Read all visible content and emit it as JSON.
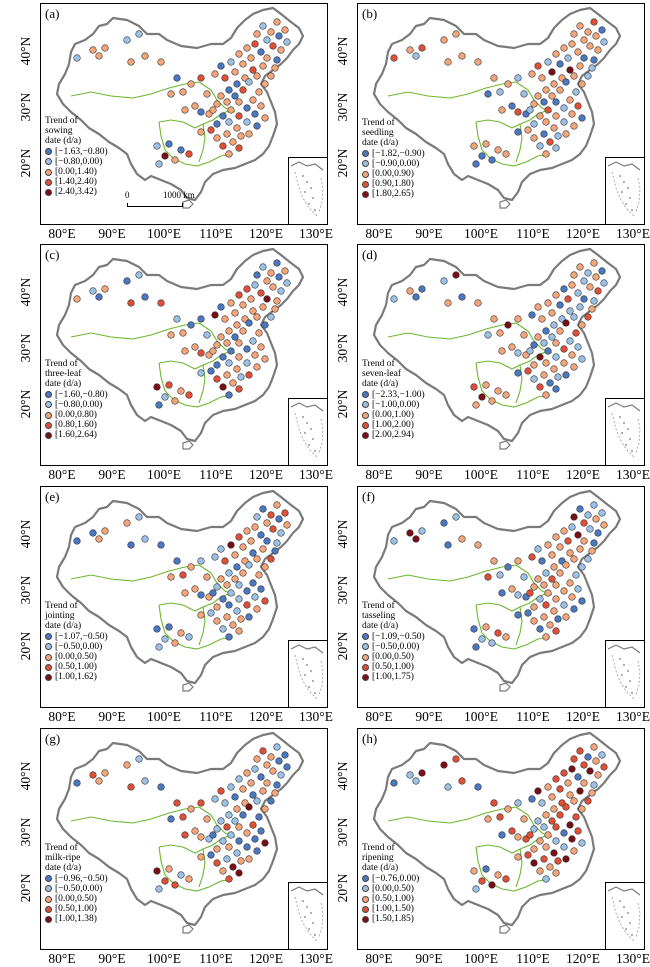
{
  "x_ticks": [
    "80°E",
    "90°E",
    "100°E",
    "110°E",
    "120°E",
    "130°E"
  ],
  "y_ticks": [
    "40°N",
    "30°N",
    "20°N"
  ],
  "scale_bar": {
    "start": "0",
    "end": "1000 km"
  },
  "colors": {
    "c1": "#4a78c2",
    "c2": "#9cc1e6",
    "c3": "#f4a57a",
    "c4": "#e05038",
    "c5": "#7a0e14",
    "boundary": "#7a7a7a",
    "zone": "#6cb82e"
  },
  "panels": [
    {
      "id": "a",
      "label": "(a)",
      "legend_title": [
        "Trend of",
        "sowing",
        "date (d/a)"
      ],
      "classes": [
        "[−1.63,−0.80)",
        "[−0.80,0.00)",
        "[0.00,1.40)",
        "[1.40,2.40)",
        "[2.40,3.42)"
      ]
    },
    {
      "id": "b",
      "label": "(b)",
      "legend_title": [
        "Trend of",
        "seedling",
        "date (d/a)"
      ],
      "classes": [
        "[−1.82,−0.90)",
        "[−0.90,0.00)",
        "[0.00,0.90)",
        "[0.90,1.80)",
        "[1.80,2.65)"
      ]
    },
    {
      "id": "c",
      "label": "(c)",
      "legend_title": [
        "Trend of",
        "three-leaf",
        "date (d/a)"
      ],
      "classes": [
        "[−1.60,−0.80)",
        "[−0.80,0.00)",
        "[0.00,0.80)",
        "[0.80,1.60)",
        "[1.60,2.64)"
      ]
    },
    {
      "id": "d",
      "label": "(d)",
      "legend_title": [
        "Trend of",
        "seven-leaf",
        "date  (d/a)"
      ],
      "classes": [
        "[−2.33,−1.00)",
        "[−1.00,0.00)",
        "[0.00,1.00)",
        "[1.00,2.00)",
        "[2.00,2.94)"
      ]
    },
    {
      "id": "e",
      "label": "(e)",
      "legend_title": [
        "Trend of",
        "jointing",
        "date (d/a)"
      ],
      "classes": [
        "[−1.07,−0.50)",
        "[−0.50,0.00)",
        "[0.00,0.50)",
        "[0.50,1.00)",
        "[1.00,1.62)"
      ]
    },
    {
      "id": "f",
      "label": "(f)",
      "legend_title": [
        "Trend of",
        "tasseling",
        "date (d/a)"
      ],
      "classes": [
        "[−1.09,−0.50)",
        "[−0.50,0.00)",
        "[0.00,0.50)",
        "[0.50,1.00)",
        "[1.00,1.75)"
      ]
    },
    {
      "id": "g",
      "label": "(g)",
      "legend_title": [
        "Trend of",
        "milk-ripe",
        "date (d/a)"
      ],
      "classes": [
        "[−0.96,−0.50)",
        "[−0.50,0.00)",
        "[0.00,0.50)",
        "[0.50,1.00)",
        "[1.00,1.38)"
      ]
    },
    {
      "id": "h",
      "label": "(h)",
      "legend_title": [
        "Trend of",
        "ripening",
        "date (d/a)"
      ],
      "classes": [
        "[−0.76,0.00)",
        "[0.00,0.50)",
        "[0.50,1.00)",
        "[1.00,1.50)",
        "[1.50,1.85)"
      ]
    }
  ]
}
